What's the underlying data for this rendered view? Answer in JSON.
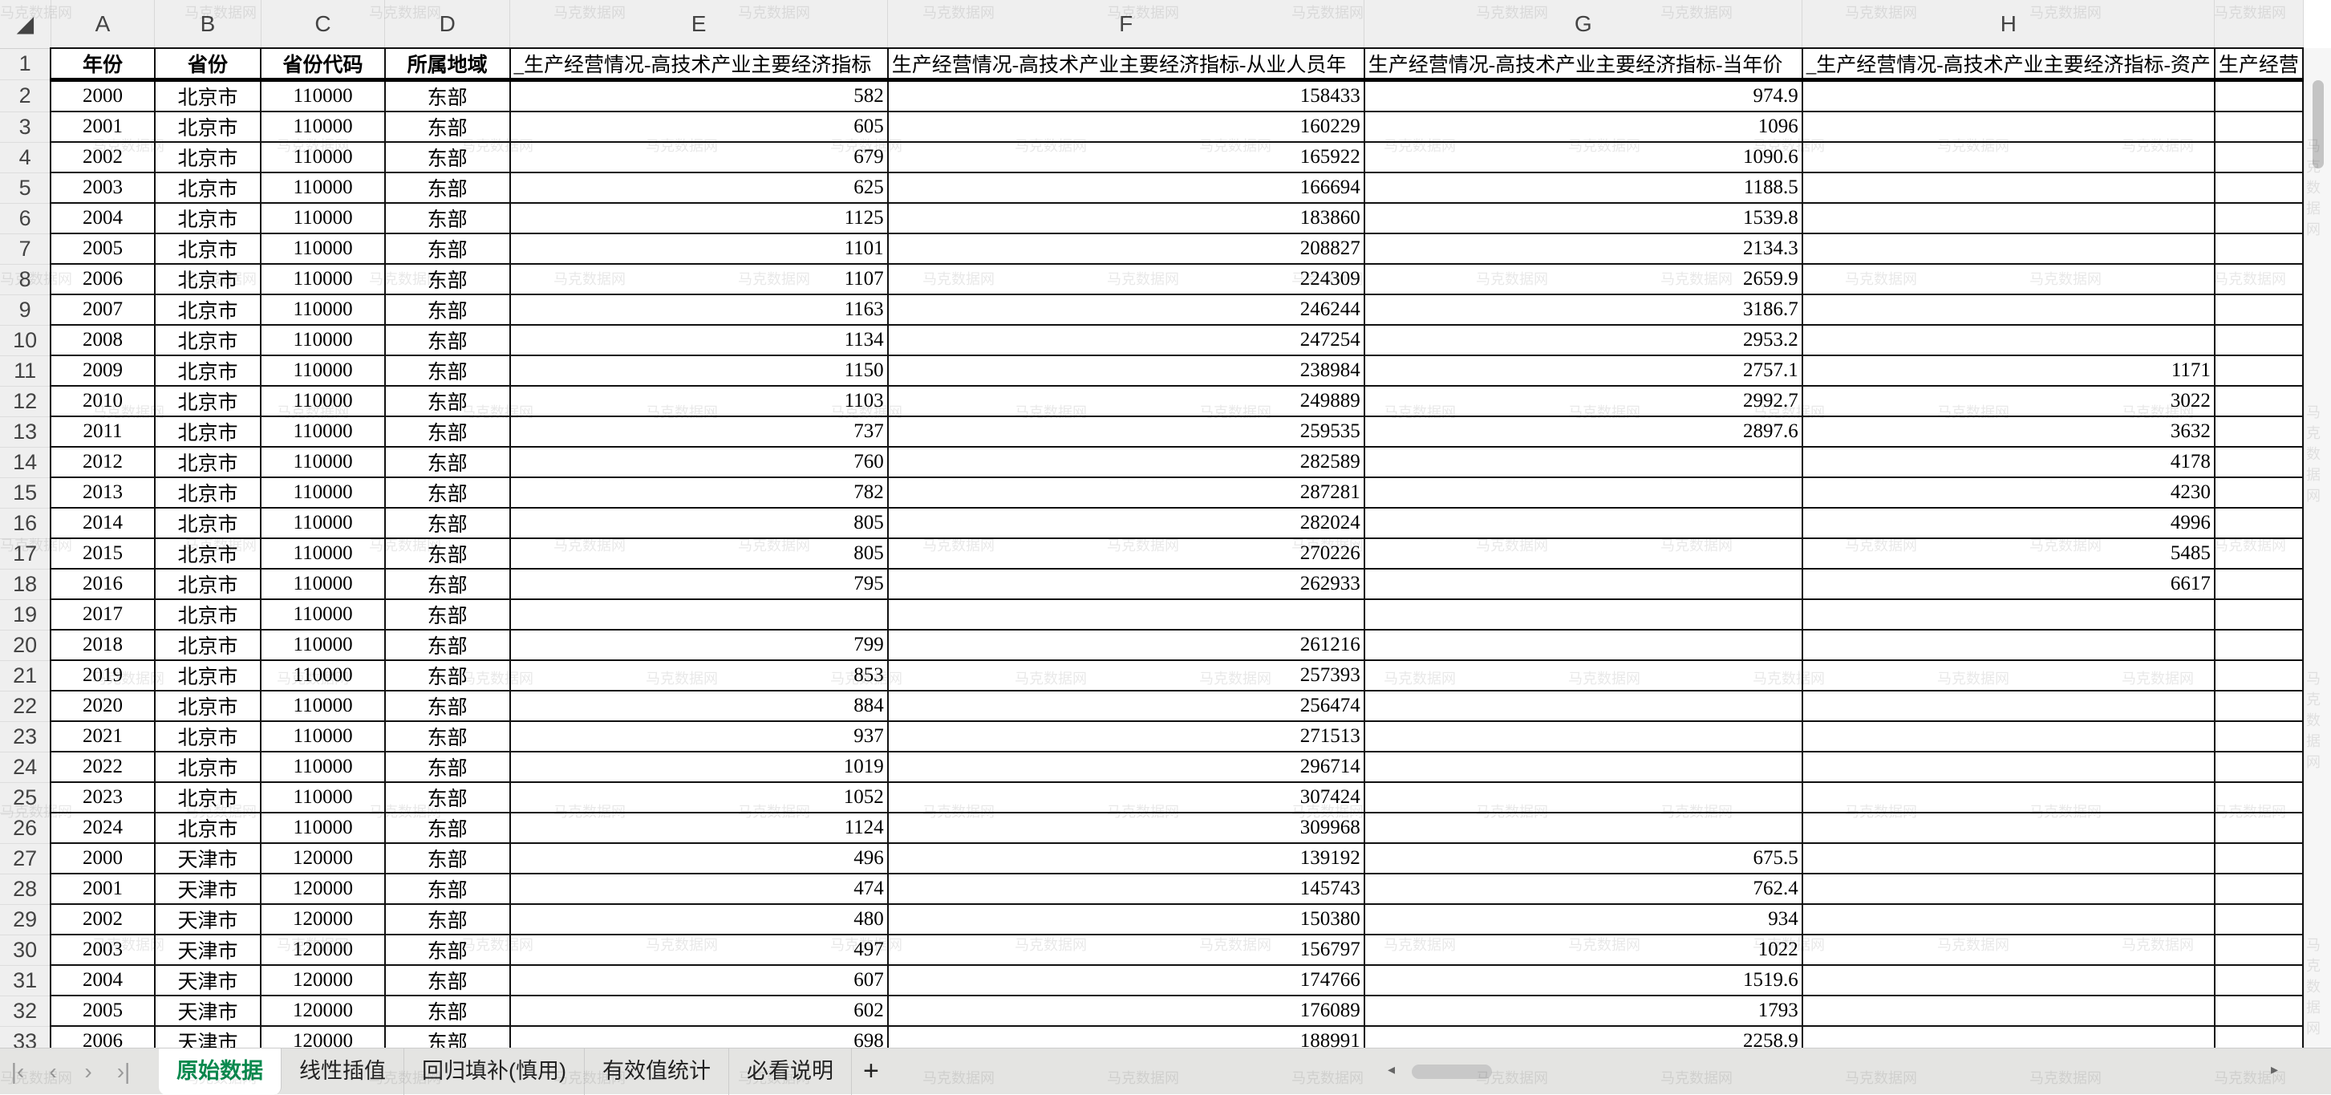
{
  "watermark": "马克数据网",
  "columns": [
    "A",
    "B",
    "C",
    "D",
    "E",
    "F",
    "G",
    "H",
    ""
  ],
  "header_row": [
    "年份",
    "省份",
    "省份代码",
    "所属地域",
    "_生产经营情况-高技术产业主要经济指标",
    "生产经营情况-高技术产业主要经济指标-从业人员年",
    "生产经营情况-高技术产业主要经济指标-当年价",
    "_生产经营情况-高技术产业主要经济指标-资产",
    "生产经营"
  ],
  "rows": [
    [
      "2000",
      "北京市",
      "110000",
      "东部",
      "582",
      "158433",
      "974.9",
      ""
    ],
    [
      "2001",
      "北京市",
      "110000",
      "东部",
      "605",
      "160229",
      "1096",
      ""
    ],
    [
      "2002",
      "北京市",
      "110000",
      "东部",
      "679",
      "165922",
      "1090.6",
      ""
    ],
    [
      "2003",
      "北京市",
      "110000",
      "东部",
      "625",
      "166694",
      "1188.5",
      ""
    ],
    [
      "2004",
      "北京市",
      "110000",
      "东部",
      "1125",
      "183860",
      "1539.8",
      ""
    ],
    [
      "2005",
      "北京市",
      "110000",
      "东部",
      "1101",
      "208827",
      "2134.3",
      ""
    ],
    [
      "2006",
      "北京市",
      "110000",
      "东部",
      "1107",
      "224309",
      "2659.9",
      ""
    ],
    [
      "2007",
      "北京市",
      "110000",
      "东部",
      "1163",
      "246244",
      "3186.7",
      ""
    ],
    [
      "2008",
      "北京市",
      "110000",
      "东部",
      "1134",
      "247254",
      "2953.2",
      ""
    ],
    [
      "2009",
      "北京市",
      "110000",
      "东部",
      "1150",
      "238984",
      "2757.1",
      "1171"
    ],
    [
      "2010",
      "北京市",
      "110000",
      "东部",
      "1103",
      "249889",
      "2992.7",
      "3022"
    ],
    [
      "2011",
      "北京市",
      "110000",
      "东部",
      "737",
      "259535",
      "2897.6",
      "3632"
    ],
    [
      "2012",
      "北京市",
      "110000",
      "东部",
      "760",
      "282589",
      "",
      "4178"
    ],
    [
      "2013",
      "北京市",
      "110000",
      "东部",
      "782",
      "287281",
      "",
      "4230"
    ],
    [
      "2014",
      "北京市",
      "110000",
      "东部",
      "805",
      "282024",
      "",
      "4996"
    ],
    [
      "2015",
      "北京市",
      "110000",
      "东部",
      "805",
      "270226",
      "",
      "5485"
    ],
    [
      "2016",
      "北京市",
      "110000",
      "东部",
      "795",
      "262933",
      "",
      "6617"
    ],
    [
      "2017",
      "北京市",
      "110000",
      "东部",
      "",
      "",
      "",
      ""
    ],
    [
      "2018",
      "北京市",
      "110000",
      "东部",
      "799",
      "261216",
      "",
      ""
    ],
    [
      "2019",
      "北京市",
      "110000",
      "东部",
      "853",
      "257393",
      "",
      ""
    ],
    [
      "2020",
      "北京市",
      "110000",
      "东部",
      "884",
      "256474",
      "",
      ""
    ],
    [
      "2021",
      "北京市",
      "110000",
      "东部",
      "937",
      "271513",
      "",
      ""
    ],
    [
      "2022",
      "北京市",
      "110000",
      "东部",
      "1019",
      "296714",
      "",
      ""
    ],
    [
      "2023",
      "北京市",
      "110000",
      "东部",
      "1052",
      "307424",
      "",
      ""
    ],
    [
      "2024",
      "北京市",
      "110000",
      "东部",
      "1124",
      "309968",
      "",
      ""
    ],
    [
      "2000",
      "天津市",
      "120000",
      "东部",
      "496",
      "139192",
      "675.5",
      ""
    ],
    [
      "2001",
      "天津市",
      "120000",
      "东部",
      "474",
      "145743",
      "762.4",
      ""
    ],
    [
      "2002",
      "天津市",
      "120000",
      "东部",
      "480",
      "150380",
      "934",
      ""
    ],
    [
      "2003",
      "天津市",
      "120000",
      "东部",
      "497",
      "156797",
      "1022",
      ""
    ],
    [
      "2004",
      "天津市",
      "120000",
      "东部",
      "607",
      "174766",
      "1519.6",
      ""
    ],
    [
      "2005",
      "天津市",
      "120000",
      "东部",
      "602",
      "176089",
      "1793",
      ""
    ],
    [
      "2006",
      "天津市",
      "120000",
      "东部",
      "698",
      "188991",
      "2258.9",
      ""
    ]
  ],
  "tabs": [
    "原始数据",
    "线性插值",
    "回归填补(慎用)",
    "有效值统计",
    "必看说明"
  ],
  "active_tab": 0,
  "add_tab": "+",
  "accent": "#0b8a4f"
}
